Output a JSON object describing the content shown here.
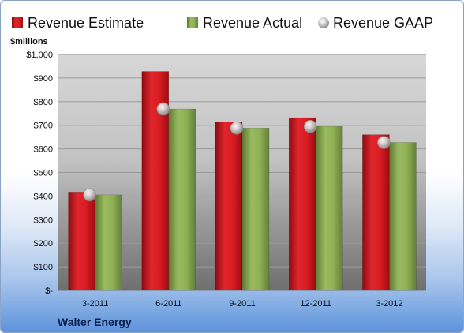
{
  "company": "Walter Energy",
  "chart_data": {
    "type": "bar",
    "ylabel": "$millions",
    "ylim": [
      0,
      1000
    ],
    "yticks": [
      "$-",
      "$100",
      "$200",
      "$300",
      "$400",
      "$500",
      "$600",
      "$700",
      "$800",
      "$900",
      "$1,000"
    ],
    "categories": [
      "3-2011",
      "6-2011",
      "9-2011",
      "12-2011",
      "3-2012"
    ],
    "series": [
      {
        "name": "Revenue Estimate",
        "type": "bar",
        "color": "#c8131b",
        "values": [
          417,
          928,
          714,
          732,
          660
        ]
      },
      {
        "name": "Revenue Actual",
        "type": "bar",
        "color": "#8aa654",
        "values": [
          405,
          769,
          688,
          695,
          627
        ]
      },
      {
        "name": "Revenue GAAP",
        "type": "marker",
        "color": "#c0c0c0",
        "values": [
          405,
          769,
          688,
          695,
          627
        ]
      }
    ],
    "legend": "top",
    "grid": true
  }
}
